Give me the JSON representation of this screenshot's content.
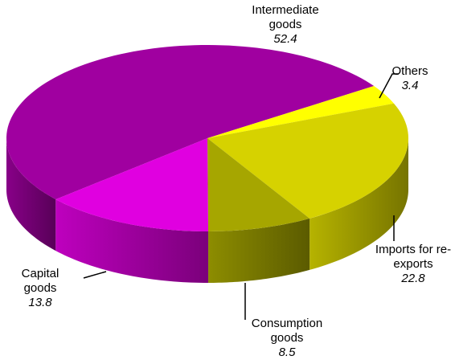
{
  "chart_data": {
    "type": "pie3d",
    "categories": [
      "Intermediate goods",
      "Others",
      "Imports for re-exports",
      "Consumption goods",
      "Capital goods"
    ],
    "values": [
      52.4,
      3.4,
      22.8,
      8.5,
      13.8
    ],
    "colors": [
      "#a000a0",
      "#ffff00",
      "#d6d200",
      "#a6a600",
      "#e000e0"
    ]
  }
}
